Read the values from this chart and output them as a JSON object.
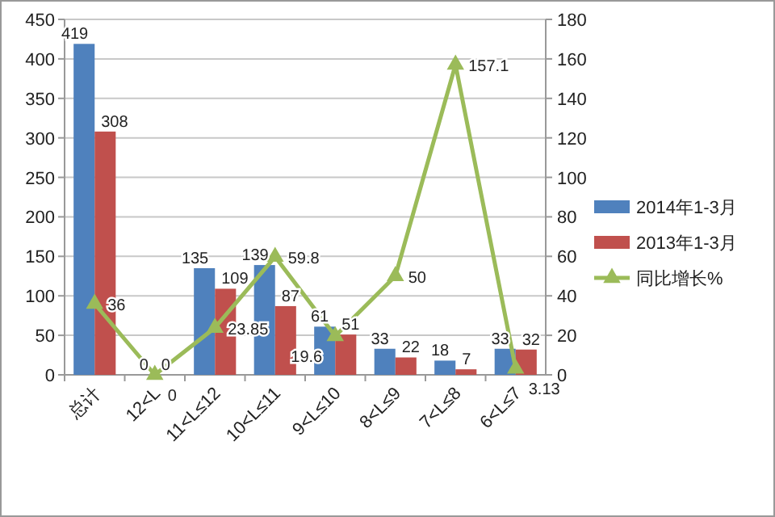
{
  "chart_data": {
    "type": "bar",
    "categories": [
      "总计",
      "12<L",
      "11<L≤12",
      "10<L≤11",
      "9<L≤10",
      "8<L≤9",
      "7<L≤8",
      "6<L≤7"
    ],
    "series": [
      {
        "name": "2014年1-3月",
        "color": "#4f81bd",
        "values": [
          419,
          0,
          135,
          139,
          61,
          33,
          18,
          33
        ]
      },
      {
        "name": "2013年1-3月",
        "color": "#c0504d",
        "values": [
          308,
          0,
          109,
          87,
          51,
          22,
          7,
          32
        ]
      },
      {
        "name": "同比增长%",
        "type": "line",
        "axis": "y2",
        "color": "#9bbb59",
        "marker": "triangle",
        "values": [
          36,
          0,
          23.85,
          59.8,
          19.6,
          50,
          157.1,
          3.13
        ]
      }
    ],
    "ylim": [
      0,
      450
    ],
    "yticks": [
      0,
      50,
      100,
      150,
      200,
      250,
      300,
      350,
      400,
      450
    ],
    "y2lim": [
      0,
      180
    ],
    "y2ticks": [
      0,
      20,
      40,
      60,
      80,
      100,
      120,
      140,
      160,
      180
    ],
    "grid": "y",
    "legend": "right",
    "data_labels": true
  }
}
